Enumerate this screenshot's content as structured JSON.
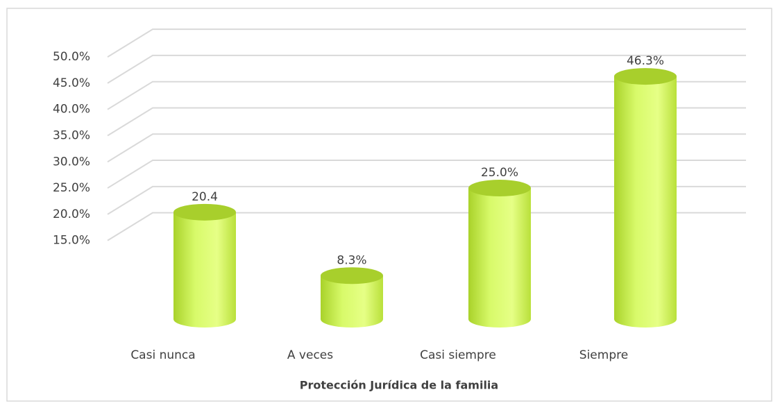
{
  "chart_data": {
    "type": "bar",
    "x_label": "Protección Jurídica de la familia",
    "categories": [
      "Casi nunca",
      "A veces",
      "Casi siempre",
      "Siempre"
    ],
    "values": [
      20.4,
      8.3,
      25.0,
      46.3
    ],
    "value_labels": [
      "20.4",
      "8.3%",
      "25.0%",
      "46.3%"
    ],
    "color": "#c8f04c",
    "ylim": [
      0,
      52
    ],
    "yticks": [
      {
        "value": 15,
        "label": "15.0%"
      },
      {
        "value": 20,
        "label": "20.0%"
      },
      {
        "value": 25,
        "label": "25.0%"
      },
      {
        "value": 30,
        "label": "30.0%"
      },
      {
        "value": 35,
        "label": "35.0%"
      },
      {
        "value": 40,
        "label": "40.0%"
      },
      {
        "value": 45,
        "label": "45.0%"
      },
      {
        "value": 50,
        "label": "50.0%"
      }
    ],
    "grid": true
  }
}
